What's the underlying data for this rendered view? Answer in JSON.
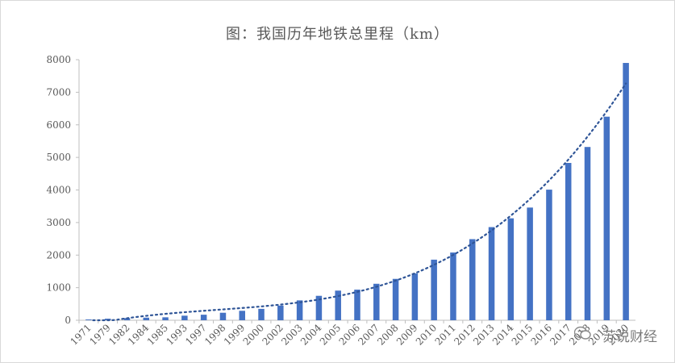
{
  "chart_data": {
    "type": "bar",
    "title": "图：我国历年地铁总里程（km）",
    "categories": [
      "1971",
      "1979",
      "1982",
      "1984",
      "1985",
      "1993",
      "1997",
      "1998",
      "1999",
      "2000",
      "2002",
      "2003",
      "2004",
      "2005",
      "2006",
      "2007",
      "2008",
      "2009",
      "2010",
      "2011",
      "2012",
      "2013",
      "2014",
      "2015",
      "2016",
      "2017",
      "2018",
      "2019",
      "2020"
    ],
    "values": [
      24,
      47,
      66,
      80,
      90,
      140,
      170,
      230,
      290,
      350,
      450,
      610,
      750,
      910,
      940,
      1120,
      1270,
      1440,
      1860,
      2080,
      2490,
      2860,
      3130,
      3460,
      4010,
      4830,
      5320,
      6250,
      7900
    ],
    "ylim": [
      0,
      8000
    ],
    "yticks": [
      0,
      1000,
      2000,
      3000,
      4000,
      5000,
      6000,
      7000,
      8000
    ],
    "xlabel": "",
    "ylabel": "",
    "trendline": {
      "style": "dotted",
      "type": "polynomial"
    },
    "bar_color": "#4472c4",
    "trend_color": "#2f5597",
    "grid": false
  },
  "watermark": {
    "text": "苏说财经",
    "icon": "wechat-icon"
  }
}
